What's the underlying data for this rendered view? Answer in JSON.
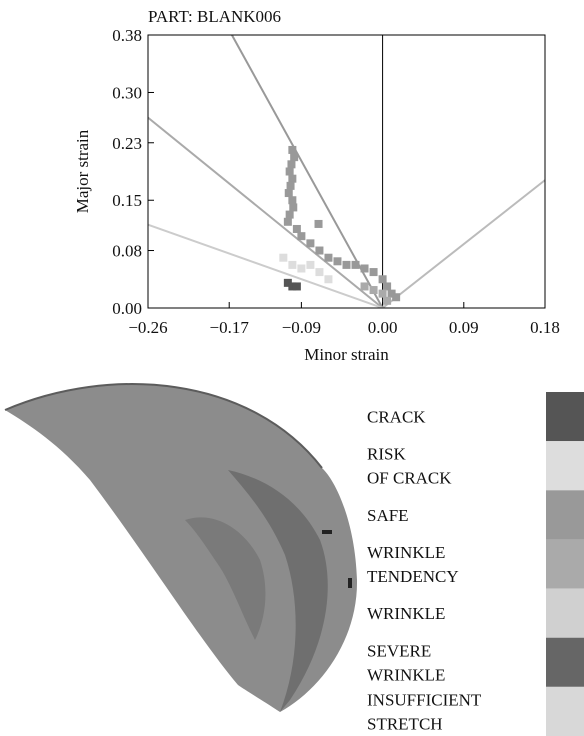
{
  "chart_data": {
    "type": "scatter",
    "title": "PART: BLANK006",
    "xlabel": "Minor strain",
    "ylabel": "Major strain",
    "xlim": [
      -0.26,
      0.18
    ],
    "ylim": [
      0,
      0.38
    ],
    "xticks": [
      {
        "value": -0.26,
        "label": "−0.26"
      },
      {
        "value": -0.17,
        "label": "−0.17"
      },
      {
        "value": -0.09,
        "label": "−0.09"
      },
      {
        "value": 0,
        "label": "0.00"
      },
      0.09,
      0.18
    ],
    "yticks": [
      {
        "value": 0,
        "label": "0.00"
      },
      0.08,
      0.15,
      0.23,
      {
        "value": 0.3,
        "label": "0.30"
      },
      0.38
    ],
    "limit_lines": [
      {
        "color": "#999999",
        "x": [
          -0.167,
          0
        ],
        "values": [
          0.38,
          0
        ]
      },
      {
        "color": "#aaaaaa",
        "x": [
          -0.26,
          0
        ],
        "values": [
          0.265,
          0
        ]
      },
      {
        "color": "#cccccc",
        "x": [
          -0.26,
          0
        ],
        "values": [
          0.116,
          0
        ]
      },
      {
        "color": "#bbbbbb",
        "x": [
          0,
          0.18
        ],
        "values": [
          0,
          0.178
        ]
      }
    ],
    "series": [
      {
        "name": "CRACK",
        "color": "#555555",
        "x": [
          -0.105,
          -0.1,
          -0.095
        ],
        "values": [
          0.035,
          0.03,
          0.03
        ]
      },
      {
        "name": "RISK\nOF CRACK",
        "color": "#dddddd",
        "x": [
          -0.11,
          -0.1,
          -0.09,
          -0.08,
          -0.07,
          -0.06
        ],
        "values": [
          0.07,
          0.06,
          0.055,
          0.06,
          0.05,
          0.04
        ]
      },
      {
        "name": "SAFE",
        "color": "#999999",
        "x": [
          -0.1,
          -0.098,
          -0.101,
          -0.103,
          -0.1,
          -0.102,
          -0.104,
          -0.1,
          -0.099,
          -0.103,
          -0.105,
          -0.095,
          -0.09,
          -0.08,
          -0.07,
          -0.071,
          -0.06,
          -0.05,
          -0.04,
          -0.03,
          -0.02,
          -0.01,
          0,
          0.005,
          0.01,
          0.015
        ],
        "values": [
          0.22,
          0.21,
          0.2,
          0.19,
          0.18,
          0.17,
          0.16,
          0.15,
          0.14,
          0.13,
          0.12,
          0.11,
          0.1,
          0.09,
          0.08,
          0.117,
          0.07,
          0.065,
          0.06,
          0.06,
          0.055,
          0.05,
          0.04,
          0.03,
          0.02,
          0.015
        ]
      },
      {
        "name": "WRINKLE\nTENDENCY",
        "color": "#aaaaaa",
        "x": [
          -0.02,
          -0.01,
          0,
          0.005
        ],
        "values": [
          0.03,
          0.025,
          0.02,
          0.01
        ]
      },
      {
        "name": "WRINKLE",
        "color": "#d0d0d0",
        "x": [],
        "values": []
      },
      {
        "name": "SEVERE\nWRINKLE",
        "color": "#666666",
        "x": [],
        "values": []
      },
      {
        "name": "INSUFFICIENT\nSTRETCH",
        "color": "#d8d8d8",
        "x": [],
        "values": []
      }
    ]
  }
}
